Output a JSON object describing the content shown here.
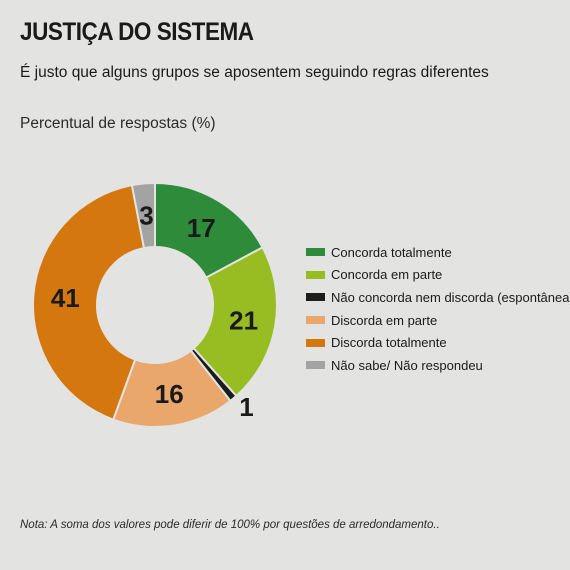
{
  "title": "JUSTIÇA DO SISTEMA",
  "subtitle": "É justo que alguns grupos se aposentem seguindo regras diferentes",
  "unit_label": "Percentual de respostas (%)",
  "note": "Nota: A soma dos valores pode diferir de 100% por questões de arredondamento..",
  "chart_data": {
    "type": "pie",
    "donut": true,
    "categories": [
      "Concorda totalmente",
      "Concorda em parte",
      "Não concorda nem discorda (espontânea)",
      "Discorda em parte",
      "Discorda totalmente",
      "Não sabe/ Não respondeu"
    ],
    "values": [
      17,
      21,
      1,
      16,
      41,
      3
    ],
    "value_labels": [
      "17",
      "21",
      "1",
      "16",
      "41",
      "3"
    ],
    "colors": [
      "#2e8b3a",
      "#97bd22",
      "#1c1c1c",
      "#e9a76c",
      "#d5770f",
      "#a3a3a3"
    ],
    "legend_position": "right"
  }
}
